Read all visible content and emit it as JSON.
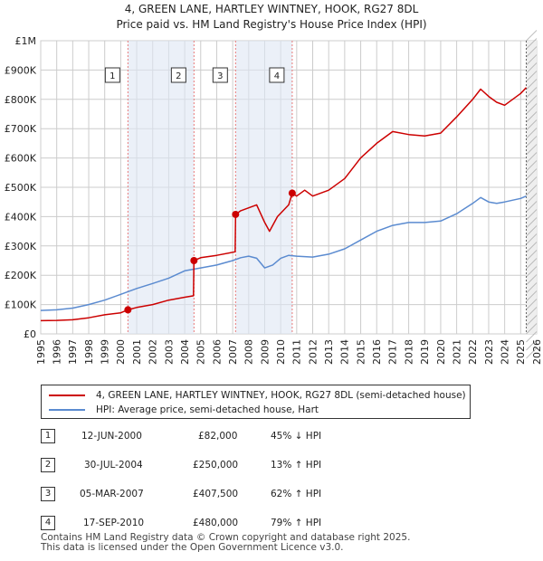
{
  "chart_data": {
    "type": "line",
    "title": "4, GREEN LANE, HARTLEY WINTNEY, HOOK, RG27 8DL",
    "subtitle": "Price paid vs. HM Land Registry's House Price Index (HPI)",
    "xlabel": "",
    "ylabel": "",
    "xlim": [
      1995,
      2026
    ],
    "ylim": [
      0,
      1000000
    ],
    "x_ticks": [
      "1995",
      "1996",
      "1997",
      "1998",
      "1999",
      "2000",
      "2001",
      "2002",
      "2003",
      "2004",
      "2005",
      "2006",
      "2007",
      "2008",
      "2009",
      "2010",
      "2011",
      "2012",
      "2013",
      "2014",
      "2015",
      "2016",
      "2017",
      "2018",
      "2019",
      "2020",
      "2021",
      "2022",
      "2023",
      "2024",
      "2025",
      "2026"
    ],
    "y_ticks": [
      {
        "value": 0,
        "label": "£0"
      },
      {
        "value": 100000,
        "label": "£100K"
      },
      {
        "value": 200000,
        "label": "£200K"
      },
      {
        "value": 300000,
        "label": "£300K"
      },
      {
        "value": 400000,
        "label": "£400K"
      },
      {
        "value": 500000,
        "label": "£500K"
      },
      {
        "value": 600000,
        "label": "£600K"
      },
      {
        "value": 700000,
        "label": "£700K"
      },
      {
        "value": 800000,
        "label": "£800K"
      },
      {
        "value": 900000,
        "label": "£900K"
      },
      {
        "value": 1000000,
        "label": "£1M"
      }
    ],
    "grid": true,
    "colors": {
      "property": "#cc0000",
      "hpi": "#5b8bd0",
      "shade": "#dde6f4",
      "marker_line": "#e87a7a"
    },
    "series": [
      {
        "name": "4, GREEN LANE, HARTLEY WINTNEY, HOOK, RG27 8DL (semi-detached house)",
        "color": "#cc0000",
        "x": [
          1995.0,
          1996.0,
          1997.0,
          1998.0,
          1999.0,
          2000.0,
          2000.45,
          2001.0,
          2002.0,
          2003.0,
          2004.0,
          2004.55,
          2004.58,
          2005.0,
          2006.0,
          2007.15,
          2007.18,
          2007.5,
          2008.0,
          2008.5,
          2009.0,
          2009.3,
          2009.8,
          2010.5,
          2010.72,
          2011.0,
          2011.5,
          2012.0,
          2013.0,
          2014.0,
          2015.0,
          2016.0,
          2017.0,
          2018.0,
          2019.0,
          2020.0,
          2021.0,
          2022.0,
          2022.5,
          2023.0,
          2023.5,
          2024.0,
          2025.0,
          2025.35
        ],
        "y": [
          45000,
          46000,
          48000,
          55000,
          65000,
          72000,
          82000,
          90000,
          100000,
          115000,
          125000,
          130000,
          250000,
          260000,
          268000,
          280000,
          407500,
          420000,
          430000,
          440000,
          380000,
          350000,
          400000,
          440000,
          480000,
          470000,
          490000,
          470000,
          490000,
          530000,
          600000,
          650000,
          690000,
          680000,
          675000,
          685000,
          740000,
          800000,
          835000,
          810000,
          790000,
          780000,
          820000,
          840000
        ]
      },
      {
        "name": "HPI: Average price, semi-detached house, Hart",
        "color": "#5b8bd0",
        "x": [
          1995.0,
          1996.0,
          1997.0,
          1998.0,
          1999.0,
          2000.0,
          2001.0,
          2002.0,
          2003.0,
          2004.0,
          2005.0,
          2006.0,
          2007.0,
          2007.5,
          2008.0,
          2008.5,
          2009.0,
          2009.5,
          2010.0,
          2010.5,
          2011.0,
          2012.0,
          2013.0,
          2014.0,
          2015.0,
          2016.0,
          2017.0,
          2018.0,
          2019.0,
          2020.0,
          2021.0,
          2022.0,
          2022.5,
          2023.0,
          2023.5,
          2024.0,
          2025.0,
          2025.35
        ],
        "y": [
          80000,
          82000,
          88000,
          100000,
          115000,
          135000,
          155000,
          172000,
          190000,
          215000,
          225000,
          235000,
          250000,
          260000,
          265000,
          258000,
          225000,
          235000,
          258000,
          268000,
          265000,
          262000,
          272000,
          290000,
          320000,
          350000,
          370000,
          380000,
          380000,
          385000,
          410000,
          445000,
          465000,
          450000,
          445000,
          450000,
          462000,
          470000
        ]
      }
    ],
    "sales": [
      {
        "label": "1",
        "x": 2000.45,
        "value": 82000
      },
      {
        "label": "2",
        "x": 2004.58,
        "value": 250000
      },
      {
        "label": "3",
        "x": 2007.18,
        "value": 407500
      },
      {
        "label": "4",
        "x": 2010.72,
        "value": 480000
      }
    ],
    "future_from": 2025.35
  },
  "legend": {
    "property": "4, GREEN LANE, HARTLEY WINTNEY, HOOK, RG27 8DL (semi-detached house)",
    "hpi": "HPI: Average price, semi-detached house, Hart"
  },
  "sales_table": [
    {
      "num": "1",
      "date": "12-JUN-2000",
      "price": "£82,000",
      "hpi": "45% ↓ HPI"
    },
    {
      "num": "2",
      "date": "30-JUL-2004",
      "price": "£250,000",
      "hpi": "13% ↑ HPI"
    },
    {
      "num": "3",
      "date": "05-MAR-2007",
      "price": "£407,500",
      "hpi": "62% ↑ HPI"
    },
    {
      "num": "4",
      "date": "17-SEP-2010",
      "price": "£480,000",
      "hpi": "79% ↑ HPI"
    }
  ],
  "footer": {
    "line1": "Contains HM Land Registry data © Crown copyright and database right 2025.",
    "line2": "This data is licensed under the Open Government Licence v3.0."
  }
}
